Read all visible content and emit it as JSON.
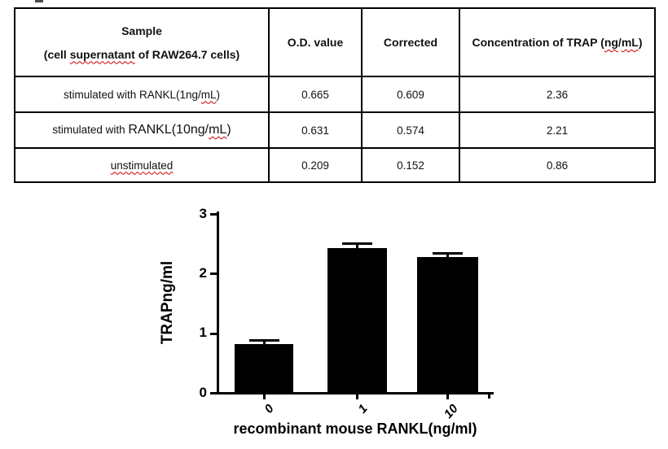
{
  "table": {
    "header": {
      "sample_line1": "Sample",
      "sample_line2": [
        {
          "t": "(cell "
        },
        {
          "t": "supernatant",
          "w": true
        },
        {
          "t": " of RAW264.7 cells)"
        }
      ],
      "od": "O.D. value",
      "corrected": "Corrected",
      "concentration": [
        {
          "t": "Concentration of TRAP ("
        },
        {
          "t": "ng",
          "w": true
        },
        {
          "t": "/"
        },
        {
          "t": "mL",
          "w": true
        },
        {
          "t": ")"
        }
      ]
    },
    "rows": [
      {
        "sample": [
          {
            "t": "stimulated with RANKL(1ng/"
          },
          {
            "t": "mL",
            "w": true
          },
          {
            "t": ")"
          }
        ],
        "od": "0.665",
        "corrected": "0.609",
        "concentration": "2.36"
      },
      {
        "sample": [
          {
            "t": "stimulated with "
          },
          {
            "t": "RANKL(10ng/",
            "lg": true
          },
          {
            "t": "mL",
            "w": true,
            "lg": true
          },
          {
            "t": ")",
            "lg": true
          }
        ],
        "od": "0.631",
        "corrected": "0.574",
        "concentration": "2.21"
      },
      {
        "sample": [
          {
            "t": "unstimulated",
            "w": true
          }
        ],
        "od": "0.209",
        "corrected": "0.152",
        "concentration": "0.86"
      }
    ]
  },
  "chart_data": {
    "type": "bar",
    "title": "",
    "categories": [
      "0",
      "1",
      "10"
    ],
    "values": [
      0.83,
      2.43,
      2.29
    ],
    "errors": [
      0.05,
      0.08,
      0.05
    ],
    "xlabel": "recombinant mouse RANKL(ng/ml)",
    "ylabel": "TRAPng/ml",
    "ylim": [
      0,
      3
    ],
    "yticks": [
      0,
      1,
      2,
      3
    ],
    "ytick_labels": [
      "0",
      "1",
      "2",
      "3"
    ],
    "bar_color": "#000000",
    "axis_color": "#000000",
    "grid": false,
    "legend": false,
    "error_bars": "upper caps"
  }
}
